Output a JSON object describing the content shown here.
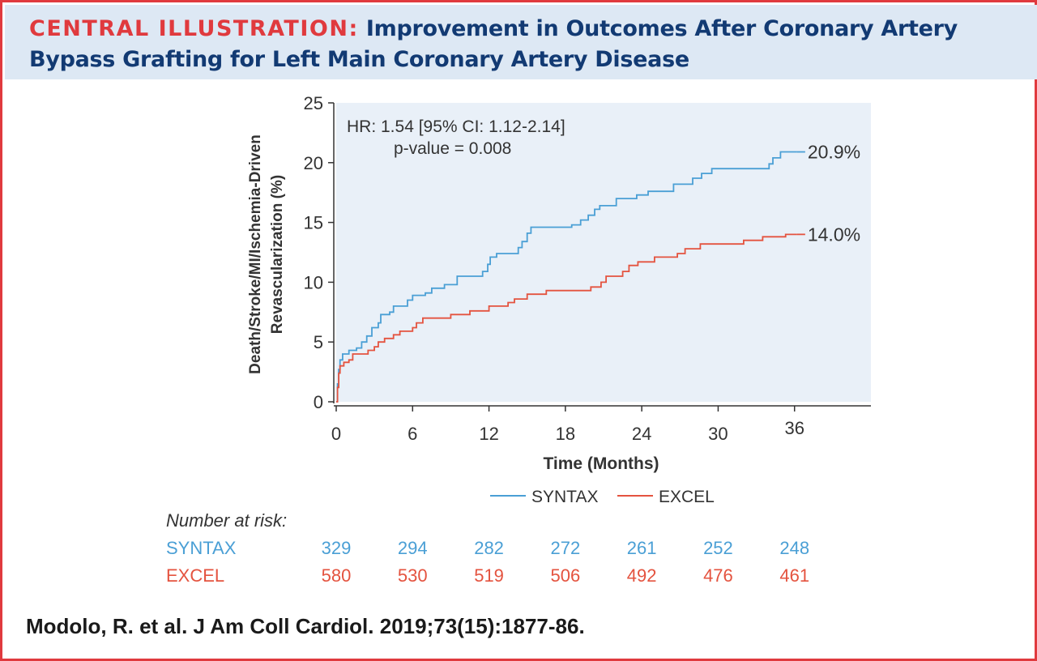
{
  "header": {
    "label": "CENTRAL ILLUSTRATION:",
    "title_line1": "Improvement in Outcomes After Coronary Artery",
    "title_line2": "Bypass Grafting for Left Main Coronary Artery Disease"
  },
  "colors": {
    "accent_red": "#e03a3e",
    "navy": "#123a73",
    "header_bg": "#dde8f4",
    "plot_bg": "#e9f0f8",
    "syntax": "#4a9fd5",
    "excel": "#e4533f"
  },
  "chart_data": {
    "type": "line",
    "title": "",
    "xlabel": "Time (Months)",
    "ylabel_line1": "Death/Stroke/MI/Ischemia-Driven",
    "ylabel_line2": "Revascularization (%)",
    "xlim": [
      0,
      42
    ],
    "ylim": [
      0,
      25
    ],
    "xticks": [
      0,
      6,
      12,
      18,
      24,
      30,
      36
    ],
    "yticks": [
      0,
      5,
      10,
      15,
      20,
      25
    ],
    "grid": false,
    "legend_position": "bottom-center",
    "annotation_line1": "HR: 1.54 [95% CI: 1.12-2.14]",
    "annotation_line2": "p-value = 0.008",
    "series": [
      {
        "name": "SYNTAX",
        "color": "#4a9fd5",
        "end_label": "20.9%",
        "points": [
          [
            0,
            0
          ],
          [
            0.1,
            1.5
          ],
          [
            0.2,
            2.7
          ],
          [
            0.3,
            3.5
          ],
          [
            0.5,
            4.0
          ],
          [
            1,
            4.3
          ],
          [
            1.6,
            4.5
          ],
          [
            2,
            5.0
          ],
          [
            2.4,
            5.5
          ],
          [
            2.8,
            6.2
          ],
          [
            3.3,
            6.6
          ],
          [
            3.5,
            7.3
          ],
          [
            4.2,
            7.5
          ],
          [
            4.5,
            8.0
          ],
          [
            5.6,
            8.5
          ],
          [
            6,
            8.9
          ],
          [
            7,
            9.1
          ],
          [
            7.5,
            9.5
          ],
          [
            8.5,
            9.8
          ],
          [
            9.5,
            10.5
          ],
          [
            11.5,
            10.9
          ],
          [
            11.9,
            11.5
          ],
          [
            12.1,
            12.1
          ],
          [
            12.6,
            12.4
          ],
          [
            14.3,
            12.9
          ],
          [
            14.6,
            13.4
          ],
          [
            15,
            14.1
          ],
          [
            15.3,
            14.6
          ],
          [
            18.5,
            14.8
          ],
          [
            19.2,
            15.2
          ],
          [
            19.8,
            15.6
          ],
          [
            20.3,
            16.1
          ],
          [
            20.7,
            16.4
          ],
          [
            22,
            17.0
          ],
          [
            23.6,
            17.3
          ],
          [
            24.5,
            17.6
          ],
          [
            26.5,
            18.2
          ],
          [
            28,
            18.7
          ],
          [
            28.7,
            19.1
          ],
          [
            29.5,
            19.5
          ],
          [
            34,
            19.9
          ],
          [
            34.3,
            20.4
          ],
          [
            34.9,
            20.9
          ],
          [
            36.2,
            20.9
          ]
        ]
      },
      {
        "name": "EXCEL",
        "color": "#e4533f",
        "end_label": "14.0%",
        "points": [
          [
            0,
            0
          ],
          [
            0.1,
            1.2
          ],
          [
            0.2,
            2.4
          ],
          [
            0.3,
            3.0
          ],
          [
            0.6,
            3.3
          ],
          [
            1,
            3.5
          ],
          [
            1.3,
            4.0
          ],
          [
            2.5,
            4.3
          ],
          [
            3,
            4.6
          ],
          [
            3.3,
            5.0
          ],
          [
            3.8,
            5.3
          ],
          [
            4.5,
            5.6
          ],
          [
            5,
            5.9
          ],
          [
            6,
            6.2
          ],
          [
            6.3,
            6.6
          ],
          [
            6.8,
            7.0
          ],
          [
            9,
            7.3
          ],
          [
            10.5,
            7.6
          ],
          [
            12,
            8.0
          ],
          [
            13.5,
            8.3
          ],
          [
            14,
            8.6
          ],
          [
            15,
            9.0
          ],
          [
            16.5,
            9.3
          ],
          [
            20,
            9.6
          ],
          [
            20.8,
            10.0
          ],
          [
            21.2,
            10.5
          ],
          [
            22.5,
            10.9
          ],
          [
            23,
            11.4
          ],
          [
            23.7,
            11.7
          ],
          [
            25,
            12.1
          ],
          [
            26.8,
            12.4
          ],
          [
            27.4,
            12.8
          ],
          [
            28.6,
            13.2
          ],
          [
            32,
            13.5
          ],
          [
            33.5,
            13.8
          ],
          [
            35.3,
            14.0
          ],
          [
            36.2,
            14.0
          ]
        ]
      }
    ]
  },
  "risk_table": {
    "title": "Number at risk:",
    "rows": [
      {
        "label": "SYNTAX",
        "values": [
          "329",
          "294",
          "282",
          "272",
          "261",
          "252",
          "248"
        ]
      },
      {
        "label": "EXCEL",
        "values": [
          "580",
          "530",
          "519",
          "506",
          "492",
          "476",
          "461"
        ]
      }
    ]
  },
  "citation": "Modolo, R. et al. J Am Coll Cardiol. 2019;73(15):1877-86."
}
